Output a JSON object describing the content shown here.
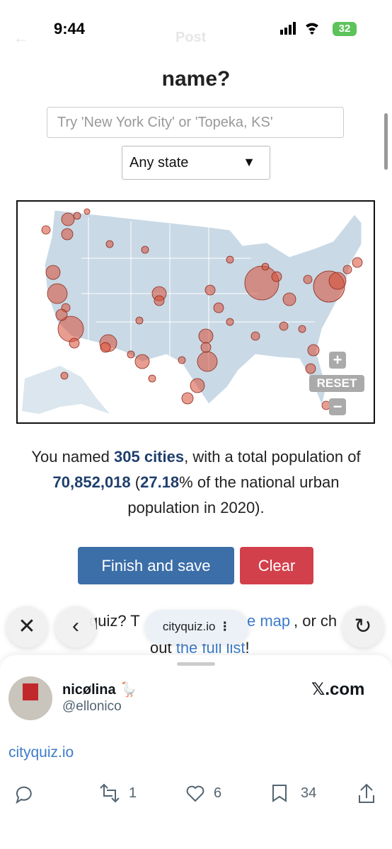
{
  "status_bar": {
    "time": "9:44",
    "battery": "32"
  },
  "nav": {
    "title": "Post"
  },
  "page": {
    "title": "name?",
    "search_placeholder": "Try 'New York City' or 'Topeka, KS'",
    "state_select": "Any state",
    "map_controls": {
      "zoom_in": "+",
      "reset": "RESET",
      "zoom_out": "−"
    },
    "summary": {
      "part1": "You named ",
      "cities": "305 cities",
      "part2": ", with a total population of ",
      "population": "70,852,018",
      "part3": " (",
      "percent": "27.18",
      "part4": "% of the national urban population in 2020)."
    },
    "buttons": {
      "finish": "Finish and save",
      "clear": "Clear"
    },
    "partial_text": {
      "a": "quiz? T",
      "b": "e map",
      "c": ", or ch",
      "d": "out ",
      "e": "the full list",
      "f": "!"
    }
  },
  "browser_bar": {
    "url": "cityquiz.io"
  },
  "post": {
    "name": "nicølina 🪿",
    "handle": "@ellonico",
    "source": "𝕏.com",
    "link": "cityquiz.io",
    "counts": {
      "retweets": "1",
      "likes": "6",
      "bookmarks": "34"
    }
  }
}
